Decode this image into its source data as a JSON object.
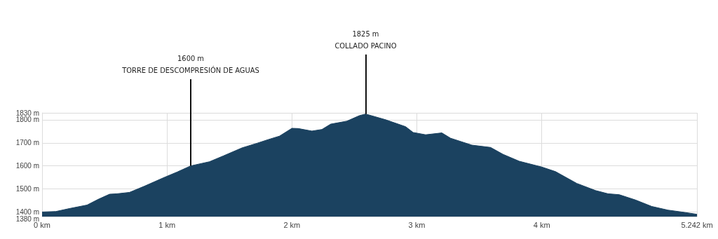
{
  "chart_data": {
    "type": "area",
    "x": [
      0,
      0.11,
      0.22,
      0.36,
      0.45,
      0.54,
      0.6,
      0.7,
      0.82,
      0.97,
      1.08,
      1.19,
      1.34,
      1.45,
      1.6,
      1.72,
      1.81,
      1.9,
      2,
      2.05,
      2.16,
      2.24,
      2.31,
      2.44,
      2.54,
      2.59,
      2.75,
      2.91,
      2.97,
      3.07,
      3.2,
      3.27,
      3.44,
      3.59,
      3.69,
      3.82,
      4,
      4.11,
      4.28,
      4.43,
      4.53,
      4.62,
      4.75,
      4.88,
      5.01,
      5.12,
      5.242
    ],
    "series": [
      {
        "color": "#1b4260",
        "values": [
          1400,
          1402,
          1415,
          1430,
          1455,
          1477,
          1479,
          1485,
          1512,
          1548,
          1573,
          1600,
          1618,
          1643,
          1678,
          1698,
          1714,
          1729,
          1763,
          1762,
          1751,
          1758,
          1781,
          1794,
          1818,
          1825,
          1800,
          1770,
          1745,
          1735,
          1743,
          1720,
          1690,
          1680,
          1650,
          1620,
          1595,
          1575,
          1524,
          1493,
          1479,
          1475,
          1452,
          1424,
          1408,
          1400,
          1390
        ]
      }
    ],
    "xlim": [
      0,
      5.242
    ],
    "xticks": [
      {
        "value": 0,
        "label": "0 km"
      },
      {
        "value": 1,
        "label": "1 km"
      },
      {
        "value": 2,
        "label": "2 km"
      },
      {
        "value": 3,
        "label": "3 km"
      },
      {
        "value": 4,
        "label": "4 km"
      },
      {
        "value": 5.242,
        "label": "5.242 km"
      }
    ],
    "ylim": [
      1380,
      1830
    ],
    "yticks": [
      {
        "value": 1380,
        "label": "1380 m"
      },
      {
        "value": 1400,
        "label": "1400 m"
      },
      {
        "value": 1500,
        "label": "1500 m"
      },
      {
        "value": 1600,
        "label": "1600 m"
      },
      {
        "value": 1700,
        "label": "1700 m"
      },
      {
        "value": 1800,
        "label": "1800 m"
      },
      {
        "value": 1830,
        "label": "1830 m"
      }
    ],
    "annotations": [
      {
        "text": "1600 m\nTORRE DE DESCOMPRESIÓN DE AGUAS",
        "x": 1.19,
        "y": 1600
      },
      {
        "text": "1825 m\nCOLLADO PACINO",
        "x": 2.59,
        "y": 1825
      }
    ],
    "grid": true
  }
}
